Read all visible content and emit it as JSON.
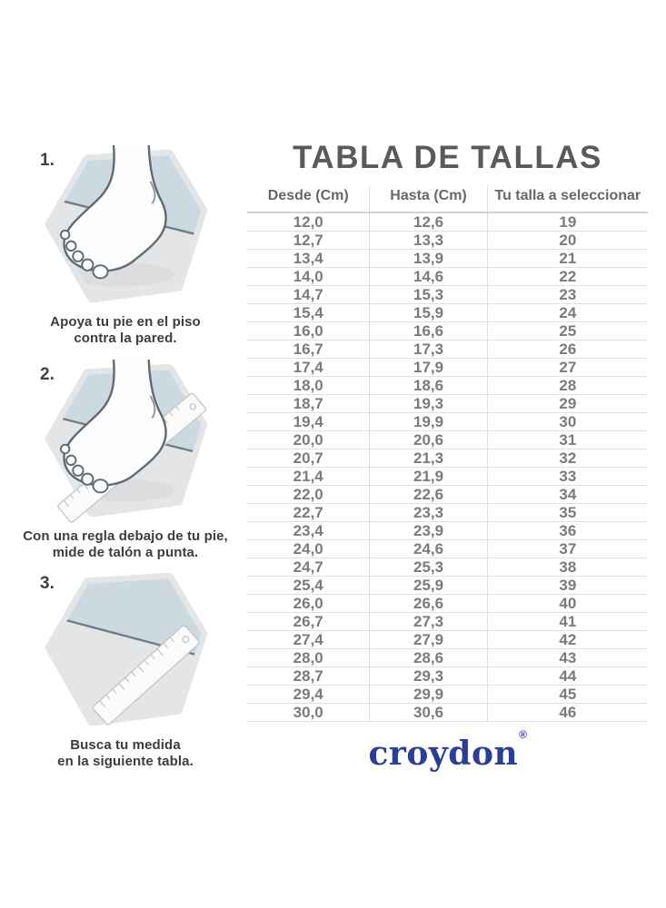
{
  "title": "TABLA DE TALLAS",
  "steps": [
    {
      "number": "1.",
      "caption_lines": [
        "Apoya tu pie en el piso",
        "contra la pared."
      ],
      "illustration": "foot-against-wall-icon"
    },
    {
      "number": "2.",
      "caption_lines": [
        "Con una regla debajo de tu pie,",
        "mide de talón a punta."
      ],
      "illustration": "foot-on-ruler-icon"
    },
    {
      "number": "3.",
      "caption_lines": [
        "Busca tu medida",
        "en la siguiente tabla."
      ],
      "illustration": "ruler-icon"
    }
  ],
  "table": {
    "headers": [
      "Desde (Cm)",
      "Hasta (Cm)",
      "Tu talla a seleccionar"
    ],
    "rows": [
      [
        "12,0",
        "12,6",
        "19"
      ],
      [
        "12,7",
        "13,3",
        "20"
      ],
      [
        "13,4",
        "13,9",
        "21"
      ],
      [
        "14,0",
        "14,6",
        "22"
      ],
      [
        "14,7",
        "15,3",
        "23"
      ],
      [
        "15,4",
        "15,9",
        "24"
      ],
      [
        "16,0",
        "16,6",
        "25"
      ],
      [
        "16,7",
        "17,3",
        "26"
      ],
      [
        "17,4",
        "17,9",
        "27"
      ],
      [
        "18,0",
        "18,6",
        "28"
      ],
      [
        "18,7",
        "19,3",
        "29"
      ],
      [
        "19,4",
        "19,9",
        "30"
      ],
      [
        "20,0",
        "20,6",
        "31"
      ],
      [
        "20,7",
        "21,3",
        "32"
      ],
      [
        "21,4",
        "21,9",
        "33"
      ],
      [
        "22,0",
        "22,6",
        "34"
      ],
      [
        "22,7",
        "23,3",
        "35"
      ],
      [
        "23,4",
        "23,9",
        "36"
      ],
      [
        "24,0",
        "24,6",
        "37"
      ],
      [
        "24,7",
        "25,3",
        "38"
      ],
      [
        "25,4",
        "25,9",
        "39"
      ],
      [
        "26,0",
        "26,6",
        "40"
      ],
      [
        "26,7",
        "27,3",
        "41"
      ],
      [
        "27,4",
        "27,9",
        "42"
      ],
      [
        "28,0",
        "28,6",
        "43"
      ],
      [
        "28,7",
        "29,3",
        "44"
      ],
      [
        "29,4",
        "29,9",
        "45"
      ],
      [
        "30,0",
        "30,6",
        "46"
      ]
    ]
  },
  "brand": {
    "name": "croydon",
    "registered_mark": "®"
  },
  "colors": {
    "brand_blue": "#2b3e96",
    "title_gray": "#595a5c",
    "table_line": "#dcdddd",
    "number_gray": "#7a7b7e",
    "hexagon_floor": "#e4e5e7",
    "hexagon_wall": "#ccd9e1",
    "outline_gray": "#5d6a72"
  }
}
